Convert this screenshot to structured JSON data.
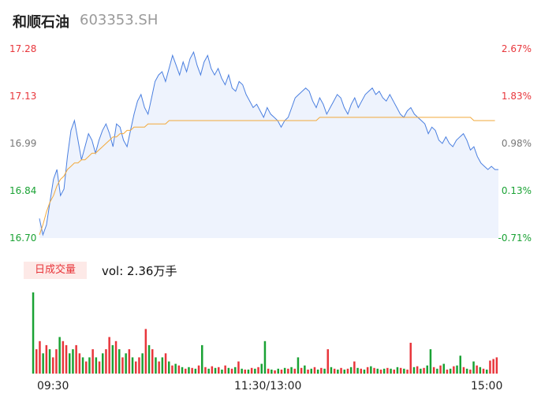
{
  "header": {
    "name": "和顺石油",
    "code": "603353.SH"
  },
  "colors": {
    "up": "#e8363b",
    "down": "#1aa234",
    "flat": "#777777",
    "price_line": "#4a7fe0",
    "avg_line": "#f2a93b",
    "fill": "#eef3fd"
  },
  "volume_panel": {
    "tag": "日成交量",
    "summary": "vol: 2.36万手"
  },
  "chart_data": [
    {
      "type": "line",
      "y_ticks": [
        "17.28",
        "17.13",
        "16.99",
        "16.84",
        "16.70"
      ],
      "pct_ticks": [
        "2.67%",
        "1.83%",
        "0.98%",
        "0.13%",
        "-0.71%"
      ],
      "x_ticks": [
        "09:30",
        "11:30/13:00",
        "15:00"
      ],
      "ylim": [
        16.7,
        17.28
      ],
      "series": [
        {
          "values": [
            16.76,
            16.71,
            16.74,
            16.81,
            16.88,
            16.91,
            16.83,
            16.85,
            16.95,
            17.03,
            17.06,
            17.0,
            16.94,
            16.98,
            17.02,
            17.0,
            16.96,
            17.0,
            17.03,
            17.05,
            17.02,
            16.98,
            17.05,
            17.04,
            17.0,
            16.98,
            17.03,
            17.08,
            17.12,
            17.14,
            17.1,
            17.08,
            17.13,
            17.18,
            17.2,
            17.21,
            17.18,
            17.22,
            17.26,
            17.23,
            17.2,
            17.24,
            17.21,
            17.25,
            17.27,
            17.23,
            17.2,
            17.24,
            17.26,
            17.22,
            17.2,
            17.22,
            17.19,
            17.17,
            17.2,
            17.16,
            17.15,
            17.18,
            17.17,
            17.14,
            17.12,
            17.1,
            17.11,
            17.09,
            17.07,
            17.1,
            17.08,
            17.07,
            17.06,
            17.04,
            17.06,
            17.07,
            17.1,
            17.13,
            17.14,
            17.15,
            17.16,
            17.15,
            17.12,
            17.1,
            17.13,
            17.11,
            17.08,
            17.1,
            17.12,
            17.14,
            17.13,
            17.1,
            17.08,
            17.11,
            17.13,
            17.1,
            17.12,
            17.14,
            17.15,
            17.16,
            17.14,
            17.15,
            17.13,
            17.12,
            17.14,
            17.12,
            17.1,
            17.08,
            17.07,
            17.09,
            17.1,
            17.08,
            17.07,
            17.06,
            17.05,
            17.02,
            17.04,
            17.03,
            17.0,
            16.99,
            17.01,
            16.99,
            16.98,
            17.0,
            17.01,
            17.02,
            17.0,
            16.97,
            16.98,
            16.95,
            16.93,
            16.92,
            16.91,
            16.92,
            16.91,
            16.91
          ]
        },
        {
          "values": [
            16.71,
            16.74,
            16.78,
            16.81,
            16.83,
            16.86,
            16.88,
            16.89,
            16.91,
            16.92,
            16.93,
            16.93,
            16.94,
            16.94,
            16.95,
            16.96,
            16.96,
            16.97,
            16.98,
            16.99,
            17.0,
            17.01,
            17.01,
            17.02,
            17.02,
            17.03,
            17.03,
            17.04,
            17.04,
            17.04,
            17.04,
            17.05,
            17.05,
            17.05,
            17.05,
            17.05,
            17.05,
            17.06,
            17.06,
            17.06,
            17.06,
            17.06,
            17.06,
            17.06,
            17.06,
            17.06,
            17.06,
            17.06,
            17.06,
            17.06,
            17.06,
            17.06,
            17.06,
            17.06,
            17.06,
            17.06,
            17.06,
            17.06,
            17.06,
            17.06,
            17.06,
            17.06,
            17.06,
            17.06,
            17.06,
            17.06,
            17.06,
            17.06,
            17.06,
            17.06,
            17.06,
            17.06,
            17.06,
            17.06,
            17.06,
            17.06,
            17.06,
            17.06,
            17.06,
            17.06,
            17.07,
            17.07,
            17.07,
            17.07,
            17.07,
            17.07,
            17.07,
            17.07,
            17.07,
            17.07,
            17.07,
            17.07,
            17.07,
            17.07,
            17.07,
            17.07,
            17.07,
            17.07,
            17.07,
            17.07,
            17.07,
            17.07,
            17.07,
            17.07,
            17.07,
            17.07,
            17.07,
            17.07,
            17.07,
            17.07,
            17.07,
            17.07,
            17.07,
            17.07,
            17.07,
            17.07,
            17.07,
            17.07,
            17.07,
            17.07,
            17.07,
            17.07,
            17.07,
            17.07,
            17.06,
            17.06,
            17.06,
            17.06,
            17.06,
            17.06,
            17.06
          ]
        }
      ]
    },
    {
      "type": "bar",
      "values": [
        1.0,
        0.3,
        0.4,
        0.25,
        0.35,
        0.3,
        0.2,
        0.3,
        0.45,
        0.4,
        0.35,
        0.25,
        0.3,
        0.35,
        0.25,
        0.2,
        0.15,
        0.2,
        0.3,
        0.2,
        0.15,
        0.25,
        0.3,
        0.45,
        0.35,
        0.4,
        0.3,
        0.2,
        0.25,
        0.3,
        0.2,
        0.15,
        0.2,
        0.25,
        0.55,
        0.35,
        0.3,
        0.2,
        0.15,
        0.2,
        0.25,
        0.15,
        0.1,
        0.12,
        0.1,
        0.08,
        0.06,
        0.08,
        0.07,
        0.06,
        0.1,
        0.35,
        0.08,
        0.06,
        0.09,
        0.07,
        0.08,
        0.05,
        0.1,
        0.07,
        0.06,
        0.08,
        0.15,
        0.06,
        0.05,
        0.05,
        0.07,
        0.06,
        0.08,
        0.12,
        0.4,
        0.06,
        0.05,
        0.04,
        0.06,
        0.05,
        0.07,
        0.06,
        0.08,
        0.06,
        0.2,
        0.07,
        0.1,
        0.05,
        0.06,
        0.08,
        0.05,
        0.07,
        0.06,
        0.3,
        0.08,
        0.06,
        0.05,
        0.07,
        0.05,
        0.06,
        0.08,
        0.15,
        0.07,
        0.06,
        0.05,
        0.08,
        0.09,
        0.07,
        0.06,
        0.05,
        0.06,
        0.07,
        0.06,
        0.05,
        0.08,
        0.07,
        0.06,
        0.05,
        0.38,
        0.08,
        0.09,
        0.06,
        0.07,
        0.1,
        0.3,
        0.08,
        0.06,
        0.1,
        0.12,
        0.05,
        0.06,
        0.09,
        0.1,
        0.22,
        0.08,
        0.06,
        0.05,
        0.15,
        0.1,
        0.08,
        0.06,
        0.05,
        0.16,
        0.18,
        0.2
      ],
      "colors": [
        "down",
        "up",
        "up",
        "down",
        "up",
        "down",
        "up",
        "up",
        "down",
        "up",
        "up",
        "down",
        "down",
        "up",
        "up",
        "down",
        "up",
        "down",
        "up",
        "down",
        "up",
        "down",
        "up",
        "up",
        "down",
        "up",
        "down",
        "up",
        "down",
        "up",
        "down",
        "up",
        "up",
        "down",
        "up",
        "down",
        "up",
        "down",
        "up",
        "down",
        "up",
        "down",
        "up",
        "down",
        "up",
        "down",
        "up",
        "down",
        "up",
        "down",
        "up",
        "down",
        "up",
        "down",
        "up",
        "down",
        "up",
        "down",
        "up",
        "down",
        "up",
        "down",
        "up",
        "down",
        "up",
        "down",
        "up",
        "down",
        "up",
        "down",
        "down",
        "up",
        "down",
        "up",
        "down",
        "up",
        "down",
        "up",
        "down",
        "up",
        "down",
        "up",
        "down",
        "up",
        "down",
        "up",
        "down",
        "up",
        "down",
        "up",
        "down",
        "up",
        "down",
        "up",
        "down",
        "up",
        "down",
        "up",
        "down",
        "up",
        "down",
        "up",
        "down",
        "up",
        "down",
        "up",
        "down",
        "up",
        "down",
        "up",
        "down",
        "up",
        "down",
        "up",
        "up",
        "down",
        "up",
        "down",
        "up",
        "down",
        "down",
        "up",
        "down",
        "up",
        "down",
        "up",
        "down",
        "up",
        "down",
        "down",
        "up",
        "down",
        "up",
        "down",
        "up",
        "down",
        "up",
        "down",
        "up",
        "up",
        "up"
      ]
    }
  ]
}
